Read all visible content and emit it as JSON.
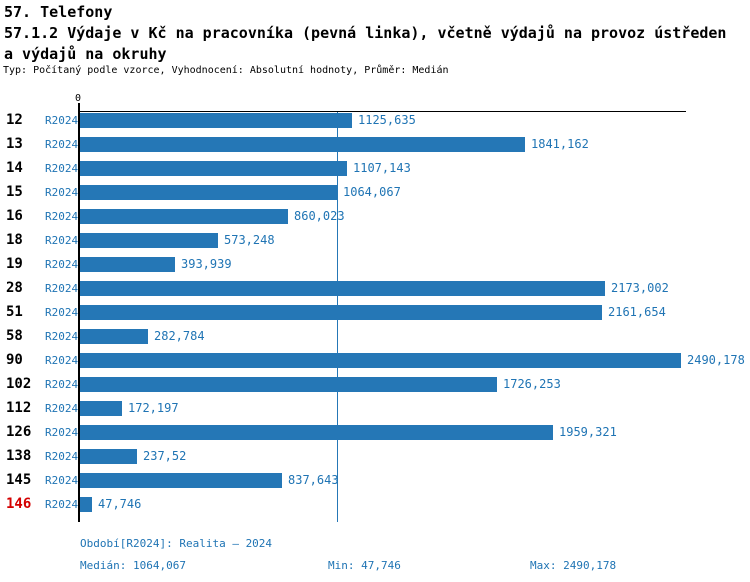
{
  "header": {
    "title": "57. Telefony",
    "subtitle_line1": "57.1.2 Výdaje v Kč na pracovníka (pevná linka), včetně výdajů na provoz ústředen",
    "subtitle_line2": "a výdajů na okruhy",
    "meta": "Typ: Počítaný podle vzorce, Vyhodnocení: Absolutní hodnoty, Průměr: Medián"
  },
  "chart_data": {
    "type": "bar",
    "orientation": "horizontal",
    "title": "57.1.2 Výdaje v Kč na pracovníka (pevná linka), včetně výdajů na provoz ústředen a výdajů na okruhy",
    "axis_origin_label": "0",
    "series_label": "R2024",
    "categories": [
      "12",
      "13",
      "14",
      "15",
      "16",
      "18",
      "19",
      "28",
      "51",
      "58",
      "90",
      "102",
      "112",
      "126",
      "138",
      "145",
      "146"
    ],
    "values": [
      1125.635,
      1841.162,
      1107.143,
      1064.067,
      860.023,
      573.248,
      393.939,
      2173.002,
      2161.654,
      282.784,
      2490.178,
      1726.253,
      172.197,
      1959.321,
      237.52,
      837.643,
      47.746
    ],
    "value_labels": [
      "1125,635",
      "1841,162",
      "1107,143",
      "1064,067",
      "860,023",
      "573,248",
      "393,939",
      "2173,002",
      "2161,654",
      "282,784",
      "2490,178",
      "1726,253",
      "172,197",
      "1959,321",
      "237,52",
      "837,643",
      "47,746"
    ],
    "highlight_category": "146",
    "median_value": 1064.067,
    "min_value": 47.746,
    "max_value": 2490.178,
    "xlim": [
      0,
      2510
    ],
    "grid": false,
    "legend": false
  },
  "colors": {
    "bar_blue": "#2577B6",
    "text_blue": "#1F74B4",
    "median_line_blue": "#2577B6",
    "highlight_red": "#D40000",
    "axis_black": "#000000"
  },
  "footer": {
    "period": "Období[R2024]: Realita – 2024",
    "median": "Medián: 1064,067",
    "min": "Min: 47,746",
    "max": "Max: 2490,178"
  }
}
